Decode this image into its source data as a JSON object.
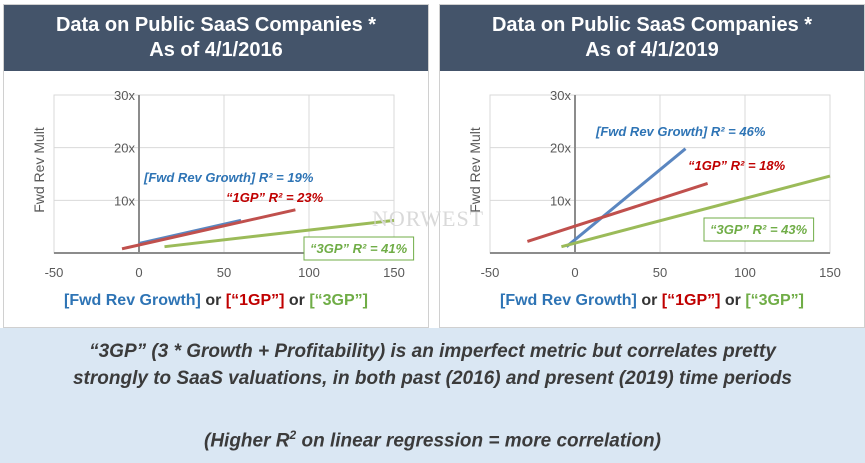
{
  "panels": [
    {
      "title_line1": "Data on Public SaaS Companies *",
      "title_line2": "As of 4/1/2016"
    },
    {
      "title_line1": "Data on Public SaaS Companies *",
      "title_line2": "As of 4/1/2019"
    }
  ],
  "legend": {
    "fwd": "[Fwd Rev Growth]",
    "or1": " or ",
    "gp1": "[“1GP”]",
    "or2": " or ",
    "gp3": "[“3GP”]"
  },
  "watermark": "NORWEST",
  "bottom": {
    "line1": "“3GP” (3  * Growth + Profitability) is an imperfect metric but correlates pretty",
    "line2": "strongly to SaaS valuations, in both past (2016) and present (2019) time periods",
    "line3_pre": "(Higher R",
    "line3_sup": "2",
    "line3_post": " on linear regression = more correlation)"
  },
  "colors": {
    "fwd": "#5a86c0",
    "gp1": "#c0504d",
    "gp3": "#9bbb59"
  },
  "chart_data": [
    {
      "type": "line",
      "ylabel": "Fwd Rev Mult",
      "xlim": [
        -50,
        150
      ],
      "ylim": [
        0,
        30
      ],
      "x_ticks": [
        -50,
        0,
        50,
        100,
        150
      ],
      "y_ticks": [
        10,
        20,
        30
      ],
      "y_tick_labels": [
        "10x",
        "20x",
        "30x"
      ],
      "grid": true,
      "series": [
        {
          "key": "fwd",
          "x": [
            0,
            60
          ],
          "y": [
            1.8,
            6.2
          ],
          "label": "[Fwd Rev Growth] R² = 19%"
        },
        {
          "key": "gp1",
          "x": [
            -10,
            92
          ],
          "y": [
            0.8,
            8.2
          ],
          "label": "“1GP” R² = 23%"
        },
        {
          "key": "gp3",
          "x": [
            15,
            150
          ],
          "y": [
            1.2,
            6.2
          ],
          "label": "“3GP” R² = 41%"
        }
      ]
    },
    {
      "type": "line",
      "ylabel": "Fwd Rev Mult",
      "xlim": [
        -50,
        150
      ],
      "ylim": [
        0,
        30
      ],
      "x_ticks": [
        -50,
        0,
        50,
        100,
        150
      ],
      "y_ticks": [
        10,
        20,
        30
      ],
      "y_tick_labels": [
        "10x",
        "20x",
        "30x"
      ],
      "grid": true,
      "series": [
        {
          "key": "fwd",
          "x": [
            -5,
            65
          ],
          "y": [
            1.2,
            19.8
          ],
          "label": "[Fwd Rev Growth] R² = 46%"
        },
        {
          "key": "gp1",
          "x": [
            -28,
            78
          ],
          "y": [
            2.2,
            13.2
          ],
          "label": "“1GP” R² = 18%"
        },
        {
          "key": "gp3",
          "x": [
            -8,
            150
          ],
          "y": [
            1.2,
            14.6
          ],
          "label": "“3GP” R² = 43%"
        }
      ]
    }
  ]
}
